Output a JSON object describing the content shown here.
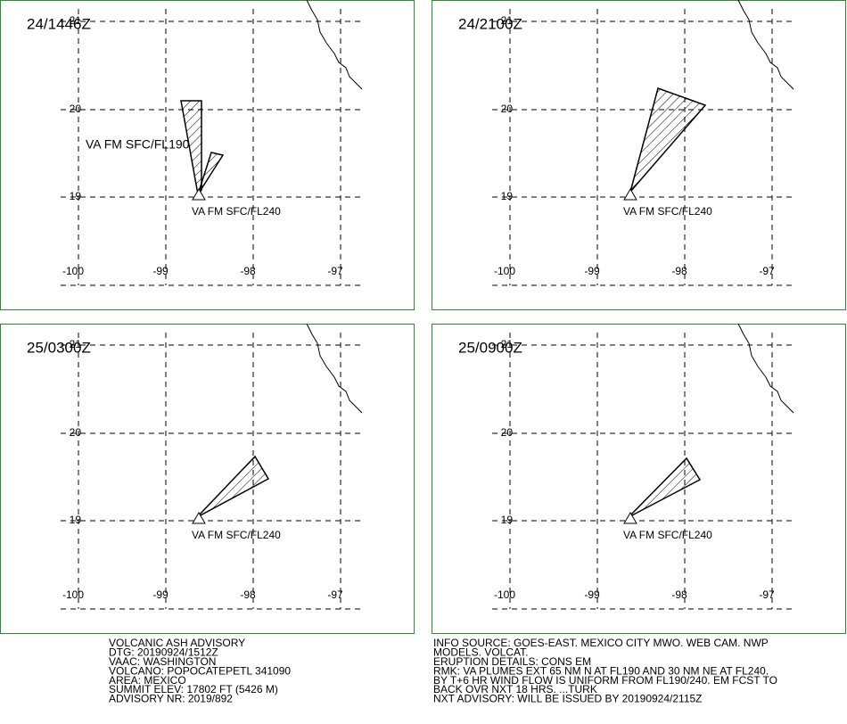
{
  "panels": [
    {
      "time": "24/1446Z",
      "labels": [
        "VA FM SFC/FL190",
        "VA FM SFC/FL240"
      ]
    },
    {
      "time": "24/2100Z",
      "labels": [
        "VA FM SFC/FL240"
      ]
    },
    {
      "time": "25/0300Z",
      "labels": [
        "VA FM SFC/FL240"
      ]
    },
    {
      "time": "25/0900Z",
      "labels": [
        "VA FM SFC/FL240"
      ]
    }
  ],
  "grid": {
    "lat": [
      21,
      20,
      19
    ],
    "lon": [
      -100,
      -99,
      -98,
      -97
    ]
  },
  "advisory": {
    "left": [
      "VOLCANIC ASH ADVISORY",
      "DTG: 20190924/1512Z",
      "VAAC: WASHINGTON",
      "VOLCANO: POPOCATEPETL 341090",
      "AREA: MEXICO",
      "SUMMIT ELEV: 17802 FT (5426 M)",
      "ADVISORY NR: 2019/892"
    ],
    "right": [
      "INFO SOURCE: GOES-EAST. MEXICO CITY MWO. WEB CAM. NWP",
      "MODELS. VOLCAT.",
      "ERUPTION DETAILS: CONS EM",
      "RMK: VA PLUMES EXT 65 NM N AT FL190 AND 30 NM NE AT FL240.",
      "BY T+6 HR WIND FLOW IS UNIFORM FROM FL190/240. EM FCST TO",
      "BACK OVR NXT 18 HRS. ...TURK",
      "NXT ADVISORY: WILL BE ISSUED BY 20190924/2115Z"
    ]
  }
}
